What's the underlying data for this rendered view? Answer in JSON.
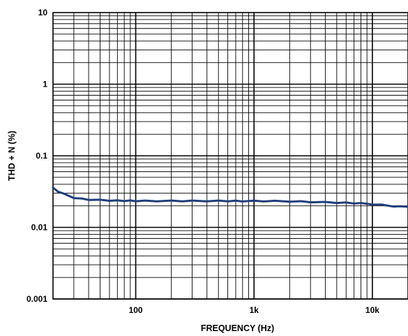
{
  "chart_data": {
    "type": "line",
    "title": "",
    "xlabel": "FREQUENCY (Hz)",
    "ylabel": "THD + N (%)",
    "x_scale": "log",
    "y_scale": "log",
    "xlim": [
      20,
      20000
    ],
    "ylim": [
      0.001,
      10
    ],
    "x_ticks": [
      {
        "value": 100,
        "label": "100"
      },
      {
        "value": 1000,
        "label": "1k"
      },
      {
        "value": 10000,
        "label": "10k"
      }
    ],
    "y_ticks": [
      {
        "value": 10,
        "label": "10"
      },
      {
        "value": 1,
        "label": "1"
      },
      {
        "value": 0.1,
        "label": "0.1"
      },
      {
        "value": 0.01,
        "label": "0.01"
      },
      {
        "value": 0.001,
        "label": "0.001"
      }
    ],
    "grid": true,
    "line_color": "#1f3f7a",
    "series": [
      {
        "x": [
          20,
          22,
          25,
          30,
          35,
          40,
          50,
          60,
          70,
          80,
          90,
          100,
          120,
          150,
          200,
          250,
          300,
          400,
          500,
          600,
          700,
          800,
          1000,
          1200,
          1500,
          2000,
          2500,
          3000,
          4000,
          5000,
          6000,
          7000,
          8000,
          10000,
          12000,
          15000,
          17000,
          20000
        ],
        "y": [
          0.036,
          0.032,
          0.029,
          0.026,
          0.025,
          0.0245,
          0.024,
          0.0238,
          0.0236,
          0.0236,
          0.0235,
          0.0235,
          0.0234,
          0.0234,
          0.0234,
          0.0234,
          0.0234,
          0.0234,
          0.0234,
          0.0234,
          0.0233,
          0.0233,
          0.0233,
          0.0233,
          0.0232,
          0.0231,
          0.0229,
          0.0227,
          0.0224,
          0.0222,
          0.022,
          0.0218,
          0.0216,
          0.0212,
          0.0205,
          0.0198,
          0.0195,
          0.0194
        ]
      }
    ]
  }
}
